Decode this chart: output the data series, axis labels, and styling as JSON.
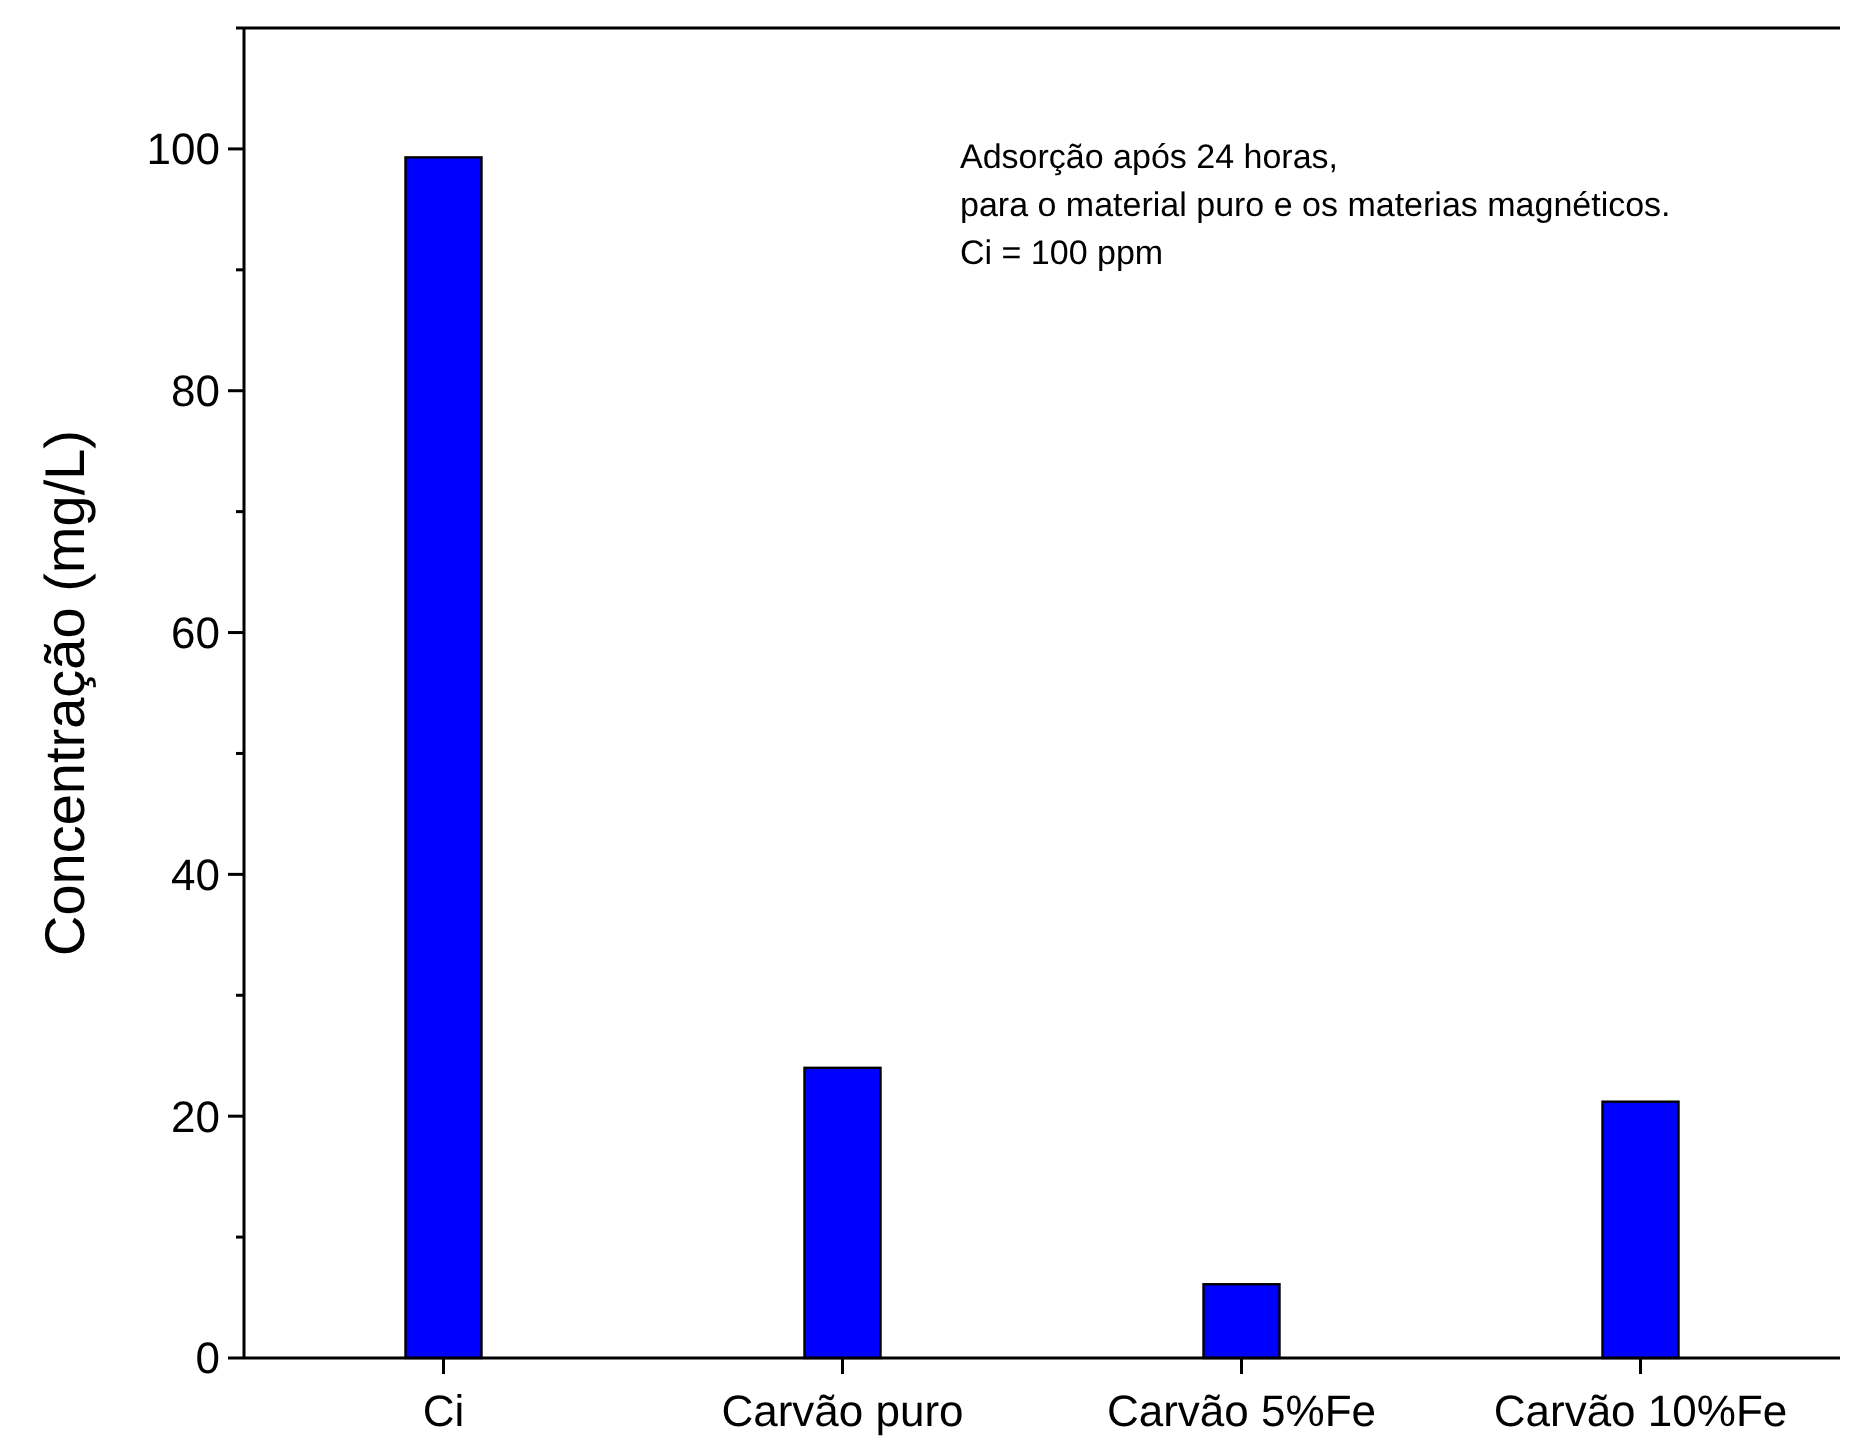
{
  "chart_data": {
    "type": "bar",
    "ylabel": "Concentração (mg/L)",
    "categories": [
      "Ci",
      "Carvão puro",
      "Carvão 5%Fe",
      "Carvão 10%Fe"
    ],
    "values": [
      99.3,
      24,
      6.1,
      21.2
    ],
    "color": "#0000ff",
    "ylim": [
      0,
      110
    ],
    "yticks": [
      0,
      {
        "value": 10,
        "label": null
      },
      20,
      {
        "value": 30,
        "label": null
      },
      40,
      {
        "value": 50,
        "label": null
      },
      60,
      {
        "value": 70,
        "label": null
      },
      80,
      {
        "value": 90,
        "label": null
      },
      100,
      {
        "value": 110,
        "label": null
      }
    ],
    "grid": false,
    "annotations": [
      "Adsorção após 24 horas,",
      "para o material puro e os materias magnéticos.",
      "Ci = 100 ppm"
    ]
  }
}
